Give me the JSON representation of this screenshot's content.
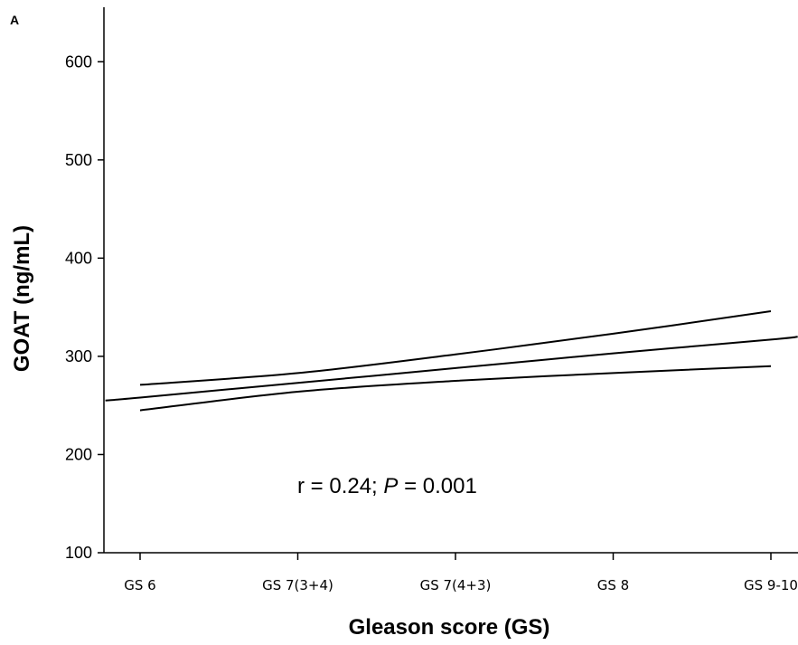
{
  "chart_data": {
    "type": "line",
    "panel_label": "A",
    "xlabel": "Gleason score (GS)",
    "ylabel": "GOAT (ng/mL)",
    "categories": [
      "GS 6",
      "GS 7(3+4)",
      "GS 7(4+3)",
      "GS 8",
      "GS 9-10"
    ],
    "ylim": [
      100,
      650
    ],
    "yticks": [
      100,
      200,
      300,
      400,
      500,
      600
    ],
    "grid": false,
    "annotation": {
      "prefix": "r = 0.24; ",
      "italic": "P",
      "suffix": " = 0.001"
    },
    "series": [
      {
        "role": "upper",
        "color": "#000000",
        "x": [
          0,
          1,
          2,
          3,
          4
        ],
        "y": [
          271,
          283,
          302,
          323,
          346
        ]
      },
      {
        "role": "fit",
        "color": "#000000",
        "x": [
          -0.22,
          0,
          1,
          2,
          3,
          4,
          4.17
        ],
        "y": [
          255,
          258,
          273,
          288,
          303,
          317,
          320
        ]
      },
      {
        "role": "lower",
        "color": "#000000",
        "x": [
          0,
          1,
          2,
          3,
          4
        ],
        "y": [
          245,
          264,
          275,
          283,
          290
        ]
      }
    ]
  }
}
